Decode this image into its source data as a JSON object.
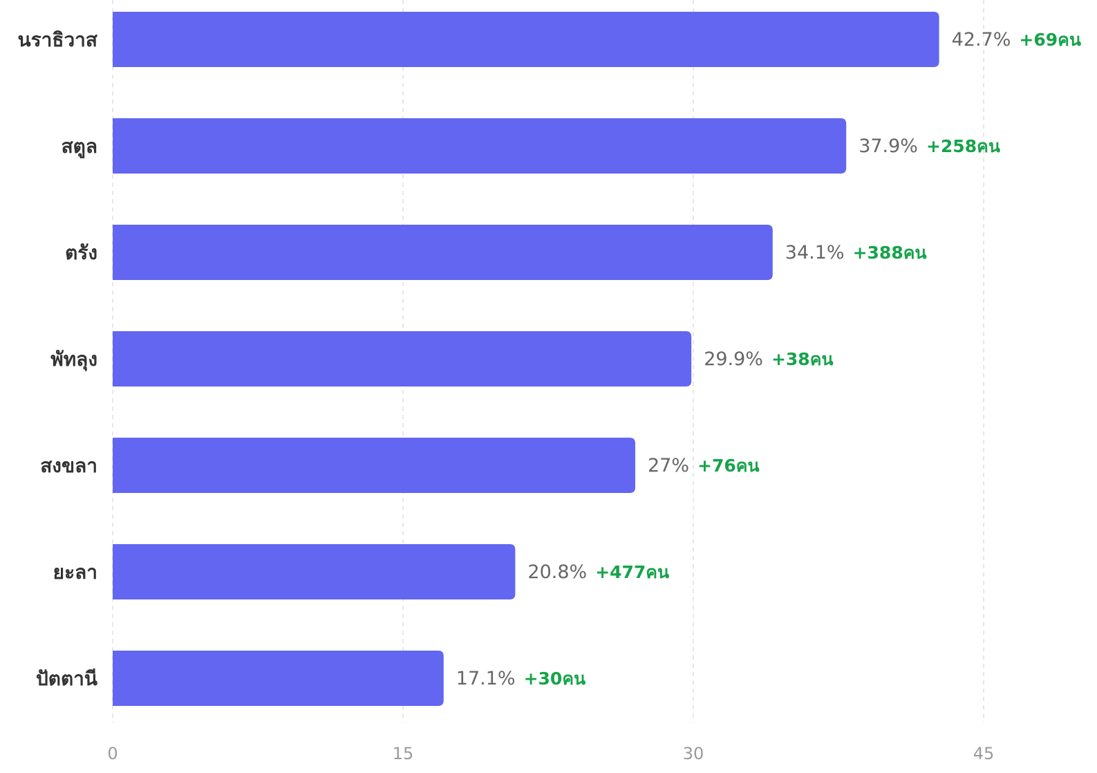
{
  "chart_data": {
    "type": "bar",
    "orientation": "horizontal",
    "categories": [
      "นราธิวาส",
      "สตูล",
      "ตรัง",
      "พัทลุง",
      "สงขลา",
      "ยะลา",
      "ปัตตานี"
    ],
    "values": [
      42.7,
      37.9,
      34.1,
      29.9,
      27,
      20.8,
      17.1
    ],
    "value_labels": [
      "42.7%",
      "37.9%",
      "34.1%",
      "29.9%",
      "27%",
      "20.8%",
      "17.1%"
    ],
    "delta_labels": [
      "+69คน",
      "+258คน",
      "+388คน",
      "+38คน",
      "+76คน",
      "+477คน",
      "+30คน"
    ],
    "xticks": [
      0,
      15,
      30,
      45
    ],
    "xlim": [
      0,
      45
    ],
    "grid": "vertical dashed",
    "legend": "none",
    "title": "",
    "xlabel": "",
    "ylabel": ""
  },
  "colors": {
    "bar": "#6366f1",
    "value_label": "#666666",
    "delta_label": "#16a34a",
    "grid": "#e5e7eb",
    "axis_text": "#9a9a9a",
    "category_text": "#333333"
  }
}
